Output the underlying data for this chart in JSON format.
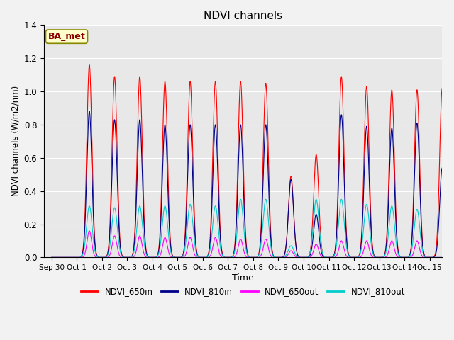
{
  "title": "NDVI channels",
  "xlabel": "Time",
  "ylabel": "NDVI channels (W/m2/nm)",
  "ylim": [
    0,
    1.4
  ],
  "annotation": "BA_met",
  "colors": {
    "650in": "#ff0000",
    "810in": "#00008b",
    "650out": "#ff00ff",
    "810out": "#00cccc"
  },
  "legend_labels": [
    "NDVI_650in",
    "NDVI_810in",
    "NDVI_650out",
    "NDVI_810out"
  ],
  "xtick_labels": [
    "Sep 30",
    "Oct 1",
    "Oct 2",
    "Oct 3",
    "Oct 4",
    "Oct 5",
    "Oct 6",
    "Oct 7",
    "Oct 8",
    "Oct 9",
    "Oct 10",
    "Oct 11",
    "Oct 12",
    "Oct 13",
    "Oct 14",
    "Oct 15"
  ],
  "peak_650in": [
    0.0,
    1.16,
    1.09,
    1.09,
    1.06,
    1.06,
    1.06,
    1.06,
    1.05,
    0.49,
    0.62,
    1.09,
    1.03,
    1.01,
    1.01,
    1.02
  ],
  "peak_810in": [
    0.0,
    0.88,
    0.83,
    0.83,
    0.8,
    0.8,
    0.8,
    0.8,
    0.8,
    0.47,
    0.26,
    0.86,
    0.79,
    0.78,
    0.81,
    0.54
  ],
  "peak_650out": [
    0.0,
    0.16,
    0.13,
    0.13,
    0.12,
    0.12,
    0.12,
    0.11,
    0.11,
    0.04,
    0.08,
    0.1,
    0.1,
    0.1,
    0.1,
    0.0
  ],
  "peak_810out": [
    0.0,
    0.31,
    0.3,
    0.31,
    0.31,
    0.32,
    0.31,
    0.35,
    0.35,
    0.07,
    0.35,
    0.35,
    0.32,
    0.31,
    0.29,
    0.0
  ],
  "background_color": "#e8e8e8",
  "fig_background": "#f2f2f2",
  "yticks": [
    0.0,
    0.2,
    0.4,
    0.6,
    0.8,
    1.0,
    1.2,
    1.4
  ]
}
